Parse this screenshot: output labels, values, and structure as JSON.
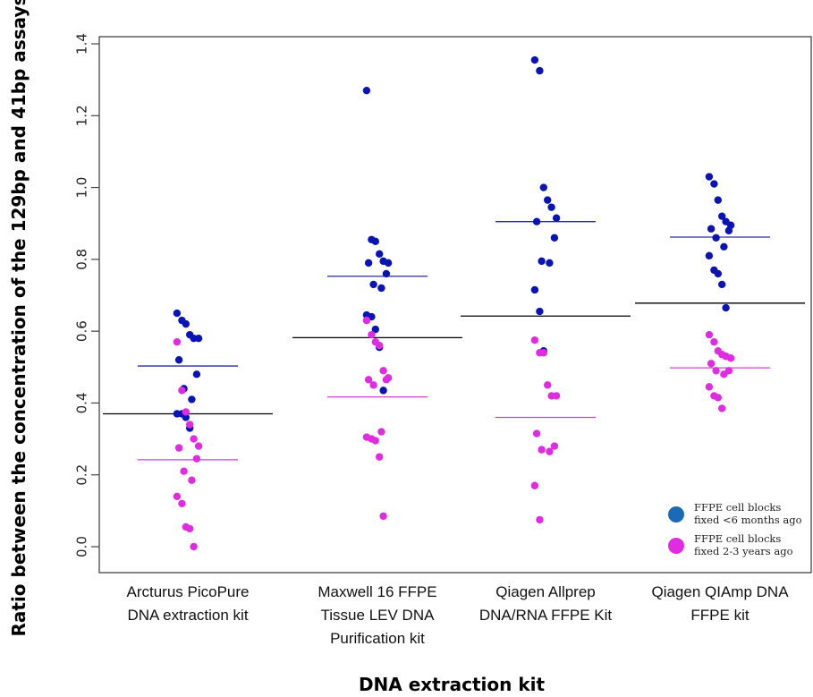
{
  "chart_data": {
    "type": "scatter",
    "xlabel": "DNA extraction kit",
    "ylabel": "Ratio between the concentration of the 129bp and 41bp assays",
    "ylim": [
      -0.07,
      1.42
    ],
    "yticks": [
      "0.0",
      "0.2",
      "0.4",
      "0.6",
      "0.8",
      "1.0",
      "1.2",
      "1.4"
    ],
    "ytick_values": [
      0.0,
      0.2,
      0.4,
      0.6,
      0.8,
      1.0,
      1.2,
      1.4
    ],
    "categories": [
      [
        "Arcturus PicoPure",
        "DNA extraction kit"
      ],
      [
        "Maxwell 16 FFPE",
        "Tissue LEV DNA",
        "Purification kit"
      ],
      [
        "Qiagen Allprep",
        "DNA/RNA FFPE Kit"
      ],
      [
        "Qiagen QIAmp DNA",
        "FFPE kit"
      ]
    ],
    "colors": {
      "recent": "#0a14b4",
      "old": "#e02ce0",
      "overall": "#000000",
      "recent_mean": "#2a2aa8",
      "old_mean": "#d040d0",
      "legend_recent": "#1a6ab8"
    },
    "legend": {
      "position": "bottom-right",
      "entries": [
        {
          "series": "recent",
          "lines": [
            "FFPE cell blocks",
            "fixed <6 months ago"
          ]
        },
        {
          "series": "old",
          "lines": [
            "FFPE cell blocks",
            "fixed 2-3 years ago"
          ]
        }
      ]
    },
    "series": [
      {
        "key": "recent",
        "values": [
          [
            0.65,
            0.63,
            0.62,
            0.59,
            0.58,
            0.58,
            0.52,
            0.48,
            0.44,
            0.41,
            0.37,
            0.37,
            0.36,
            0.33
          ],
          [
            1.27,
            0.855,
            0.85,
            0.815,
            0.795,
            0.79,
            0.79,
            0.76,
            0.73,
            0.72,
            0.645,
            0.64,
            0.605,
            0.555,
            0.435
          ],
          [
            1.355,
            1.325,
            1.0,
            0.965,
            0.945,
            0.915,
            0.905,
            0.86,
            0.795,
            0.79,
            0.715,
            0.655,
            0.545
          ],
          [
            1.03,
            1.01,
            0.965,
            0.92,
            0.905,
            0.895,
            0.885,
            0.88,
            0.86,
            0.835,
            0.81,
            0.77,
            0.76,
            0.73,
            0.665
          ]
        ]
      },
      {
        "key": "old",
        "values": [
          [
            0.57,
            0.435,
            0.375,
            0.34,
            0.3,
            0.28,
            0.275,
            0.245,
            0.21,
            0.185,
            0.14,
            0.12,
            0.055,
            0.05,
            0.0
          ],
          [
            0.63,
            0.59,
            0.57,
            0.56,
            0.49,
            0.47,
            0.465,
            0.465,
            0.45,
            0.32,
            0.305,
            0.3,
            0.295,
            0.25,
            0.085
          ],
          [
            0.575,
            0.54,
            0.54,
            0.45,
            0.42,
            0.42,
            0.315,
            0.28,
            0.27,
            0.265,
            0.17,
            0.075
          ],
          [
            0.59,
            0.57,
            0.545,
            0.535,
            0.53,
            0.525,
            0.51,
            0.49,
            0.49,
            0.48,
            0.445,
            0.42,
            0.415,
            0.385
          ]
        ]
      }
    ],
    "mean_lines": {
      "overall": [
        0.37,
        0.582,
        0.642,
        0.678
      ],
      "recent": [
        0.503,
        0.753,
        0.905,
        0.862
      ],
      "old": [
        0.242,
        0.417,
        0.36,
        0.498
      ]
    }
  }
}
